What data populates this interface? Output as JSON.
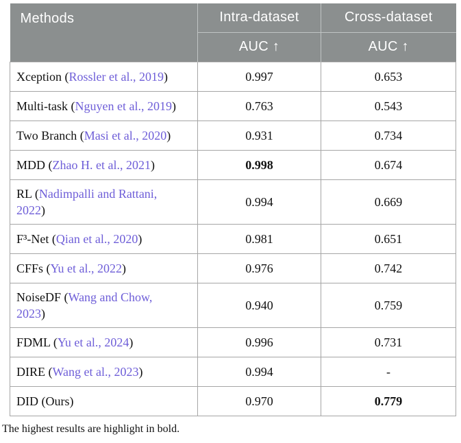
{
  "colors": {
    "header_bg": "#8b8f8f",
    "header_text": "#ffffff",
    "header_divider": "#c0c4c4",
    "border": "#a5a5a5",
    "citation": "#6e5ed8"
  },
  "table": {
    "header": {
      "methods_label": "Methods",
      "columns": [
        "Intra-dataset",
        "Cross-dataset"
      ],
      "metric_label": "AUC ↑"
    },
    "rows": [
      {
        "name": "Xception",
        "citation": "Rossler et al., 2019",
        "intra": "0.997",
        "intra_bold": false,
        "cross": "0.653",
        "cross_bold": false
      },
      {
        "name": "Multi-task",
        "citation": "Nguyen et al., 2019",
        "intra": "0.763",
        "intra_bold": false,
        "cross": "0.543",
        "cross_bold": false
      },
      {
        "name": "Two Branch",
        "citation": "Masi et al., 2020",
        "intra": "0.931",
        "intra_bold": false,
        "cross": "0.734",
        "cross_bold": false
      },
      {
        "name": "MDD",
        "citation": "Zhao H. et al., 2021",
        "intra": "0.998",
        "intra_bold": true,
        "cross": "0.674",
        "cross_bold": false
      },
      {
        "name": "RL",
        "citation": "Nadimpalli and Rattani,\n2022",
        "intra": "0.994",
        "intra_bold": false,
        "cross": "0.669",
        "cross_bold": false
      },
      {
        "name": "F³-Net",
        "citation": "Qian et al., 2020",
        "intra": "0.981",
        "intra_bold": false,
        "cross": "0.651",
        "cross_bold": false
      },
      {
        "name": "CFFs",
        "citation": "Yu et al., 2022",
        "intra": "0.976",
        "intra_bold": false,
        "cross": "0.742",
        "cross_bold": false
      },
      {
        "name": "NoiseDF",
        "citation": "Wang and Chow,\n2023",
        "intra": "0.940",
        "intra_bold": false,
        "cross": "0.759",
        "cross_bold": false
      },
      {
        "name": "FDML",
        "citation": "Yu et al., 2024",
        "intra": "0.996",
        "intra_bold": false,
        "cross": "0.731",
        "cross_bold": false
      },
      {
        "name": "DIRE",
        "citation": "Wang et al., 2023",
        "intra": "0.994",
        "intra_bold": false,
        "cross": "-",
        "cross_bold": false
      },
      {
        "name": "DID (Ours)",
        "citation": null,
        "intra": "0.970",
        "intra_bold": false,
        "cross": "0.779",
        "cross_bold": true
      }
    ],
    "footnote": "The highest results are highlight in bold."
  }
}
